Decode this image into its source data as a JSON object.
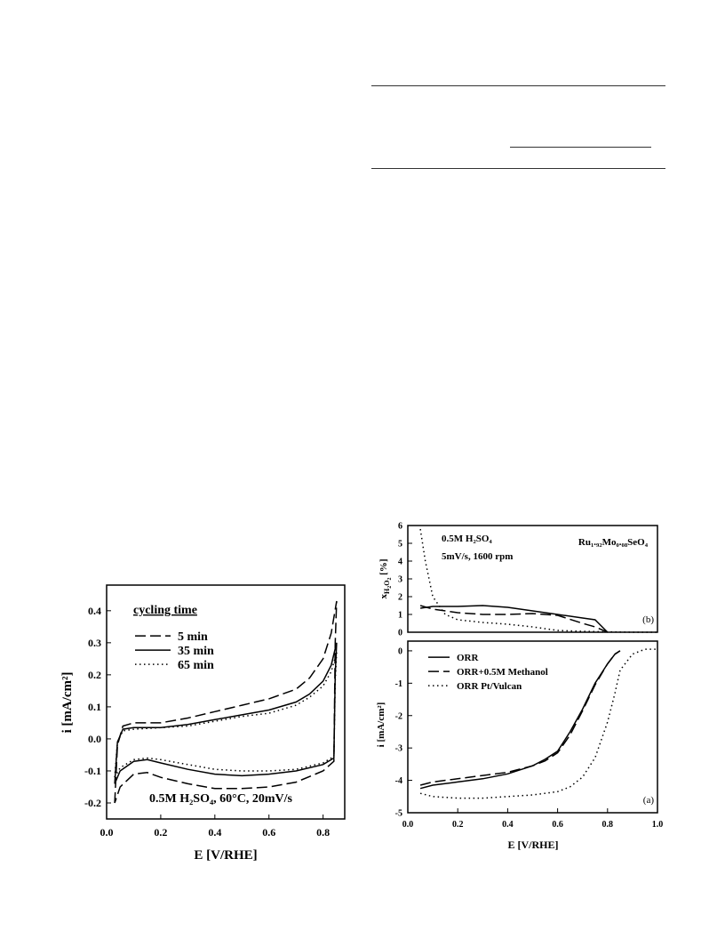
{
  "chart_data": [
    {
      "type": "line",
      "title": "",
      "xlabel": "E [V/RHE]",
      "ylabel": "i [mA/cm²]",
      "xlim": [
        0.0,
        0.88
      ],
      "ylim": [
        -0.25,
        0.48
      ],
      "xticks": [
        "0.0",
        "0.2",
        "0.4",
        "0.6",
        "0.8"
      ],
      "yticks": [
        "-0.2",
        "-0.1",
        "0.0",
        "0.1",
        "0.2",
        "0.3",
        "0.4"
      ],
      "legend_title": "cycling time",
      "legend_position": "top-left",
      "annotation": "0.5M H₂SO₄, 60°C, 20mV/s",
      "series": [
        {
          "name": "5 min",
          "style": "dashed",
          "x": [
            0.03,
            0.04,
            0.06,
            0.1,
            0.2,
            0.3,
            0.4,
            0.5,
            0.6,
            0.7,
            0.75,
            0.8,
            0.83,
            0.85,
            0.845,
            0.84,
            0.8,
            0.7,
            0.6,
            0.5,
            0.4,
            0.3,
            0.2,
            0.15,
            0.1,
            0.05,
            0.03
          ],
          "y": [
            -0.2,
            -0.02,
            0.04,
            0.05,
            0.05,
            0.065,
            0.085,
            0.105,
            0.125,
            0.155,
            0.19,
            0.25,
            0.33,
            0.43,
            0.3,
            -0.07,
            -0.1,
            -0.135,
            -0.15,
            -0.155,
            -0.155,
            -0.14,
            -0.12,
            -0.105,
            -0.11,
            -0.15,
            -0.2
          ]
        },
        {
          "name": "35 min",
          "style": "solid",
          "x": [
            0.03,
            0.04,
            0.06,
            0.1,
            0.2,
            0.3,
            0.4,
            0.5,
            0.6,
            0.7,
            0.75,
            0.8,
            0.83,
            0.85,
            0.845,
            0.84,
            0.8,
            0.7,
            0.6,
            0.5,
            0.4,
            0.3,
            0.2,
            0.15,
            0.1,
            0.05,
            0.03
          ],
          "y": [
            -0.14,
            -0.01,
            0.03,
            0.035,
            0.035,
            0.045,
            0.06,
            0.075,
            0.09,
            0.115,
            0.14,
            0.18,
            0.23,
            0.3,
            0.2,
            -0.06,
            -0.08,
            -0.1,
            -0.11,
            -0.115,
            -0.11,
            -0.095,
            -0.075,
            -0.065,
            -0.07,
            -0.1,
            -0.14
          ]
        },
        {
          "name": "65 min",
          "style": "dotted",
          "x": [
            0.03,
            0.04,
            0.06,
            0.1,
            0.2,
            0.3,
            0.4,
            0.5,
            0.6,
            0.7,
            0.75,
            0.8,
            0.83,
            0.85,
            0.845,
            0.84,
            0.8,
            0.7,
            0.6,
            0.5,
            0.4,
            0.3,
            0.2,
            0.15,
            0.1,
            0.05,
            0.03
          ],
          "y": [
            -0.12,
            -0.01,
            0.025,
            0.03,
            0.035,
            0.04,
            0.055,
            0.07,
            0.08,
            0.105,
            0.13,
            0.165,
            0.21,
            0.27,
            0.18,
            -0.055,
            -0.075,
            -0.095,
            -0.1,
            -0.1,
            -0.095,
            -0.08,
            -0.065,
            -0.06,
            -0.065,
            -0.09,
            -0.12
          ]
        }
      ]
    },
    {
      "type": "line",
      "title": "",
      "xlabel": "E [V/RHE]",
      "ylabel": "x_H2O2 [%]",
      "panel_label": "(b)",
      "xlim": [
        0.0,
        1.0
      ],
      "ylim": [
        0,
        6
      ],
      "xticks": [
        "0.0",
        "0.2",
        "0.4",
        "0.6",
        "0.8",
        "1.0"
      ],
      "yticks": [
        "0",
        "1",
        "2",
        "3",
        "4",
        "5",
        "6"
      ],
      "annotations": [
        "0.5M H₂SO₄",
        "5mV/s, 1600 rpm",
        "Ru₁.₉₂Mo₀.₀₈SeO₄"
      ],
      "series": [
        {
          "name": "",
          "style": "solid",
          "x": [
            0.05,
            0.1,
            0.2,
            0.3,
            0.4,
            0.5,
            0.6,
            0.7,
            0.75,
            0.8
          ],
          "y": [
            1.35,
            1.45,
            1.45,
            1.5,
            1.4,
            1.2,
            1.0,
            0.8,
            0.7,
            0.0
          ]
        },
        {
          "name": "",
          "style": "dashed",
          "x": [
            0.05,
            0.1,
            0.2,
            0.3,
            0.4,
            0.5,
            0.6,
            0.7,
            0.75,
            0.8
          ],
          "y": [
            1.5,
            1.3,
            1.1,
            1.0,
            1.0,
            1.05,
            0.95,
            0.5,
            0.3,
            0.0
          ]
        },
        {
          "name": "",
          "style": "dotted",
          "x": [
            0.05,
            0.07,
            0.1,
            0.15,
            0.2,
            0.3,
            0.4,
            0.5,
            0.6,
            0.7,
            0.8,
            0.9,
            1.0
          ],
          "y": [
            5.8,
            4.0,
            2.0,
            1.0,
            0.7,
            0.55,
            0.45,
            0.3,
            0.1,
            0.05,
            0.02,
            0.0,
            0.0
          ]
        }
      ]
    },
    {
      "type": "line",
      "title": "",
      "xlabel": "E [V/RHE]",
      "ylabel": "i [mA/cm²]",
      "panel_label": "(a)",
      "xlim": [
        0.0,
        1.0
      ],
      "ylim": [
        -5,
        0.3
      ],
      "xticks": [
        "0.0",
        "0.2",
        "0.4",
        "0.6",
        "0.8",
        "1.0"
      ],
      "yticks": [
        "-5",
        "-4",
        "-3",
        "-2",
        "-1",
        "0"
      ],
      "legend_position": "top-left",
      "series": [
        {
          "name": "ORR",
          "style": "solid",
          "x": [
            0.05,
            0.1,
            0.2,
            0.3,
            0.4,
            0.5,
            0.55,
            0.6,
            0.65,
            0.7,
            0.75,
            0.8,
            0.83,
            0.85
          ],
          "y": [
            -4.25,
            -4.15,
            -4.05,
            -3.95,
            -3.8,
            -3.55,
            -3.35,
            -3.1,
            -2.5,
            -1.8,
            -1.0,
            -0.4,
            -0.1,
            0.0
          ]
        },
        {
          "name": "ORR+0.5M Methanol",
          "style": "dashed",
          "x": [
            0.05,
            0.1,
            0.2,
            0.3,
            0.4,
            0.5,
            0.55,
            0.6,
            0.65,
            0.7,
            0.75,
            0.8,
            0.83,
            0.85
          ],
          "y": [
            -4.15,
            -4.05,
            -3.95,
            -3.85,
            -3.75,
            -3.55,
            -3.4,
            -3.15,
            -2.6,
            -1.85,
            -1.05,
            -0.4,
            -0.1,
            0.0
          ]
        },
        {
          "name": "ORR Pt/Vulcan",
          "style": "dotted",
          "x": [
            0.05,
            0.1,
            0.2,
            0.3,
            0.4,
            0.5,
            0.6,
            0.65,
            0.7,
            0.75,
            0.8,
            0.83,
            0.85,
            0.9,
            0.95,
            1.0
          ],
          "y": [
            -4.4,
            -4.5,
            -4.55,
            -4.55,
            -4.5,
            -4.45,
            -4.35,
            -4.2,
            -3.9,
            -3.3,
            -2.2,
            -1.3,
            -0.6,
            -0.1,
            0.05,
            0.05
          ]
        }
      ]
    }
  ]
}
